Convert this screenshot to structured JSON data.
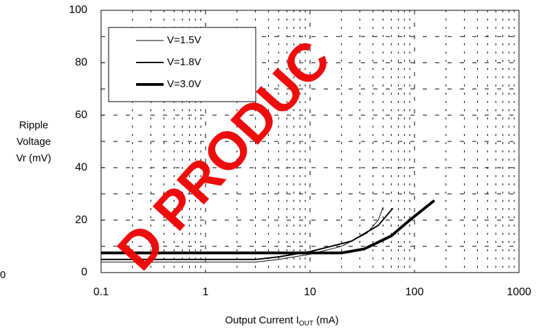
{
  "chart_data": {
    "type": "line",
    "ylabel": [
      "Ripple",
      "Voltage",
      "Vr (mV)"
    ],
    "xlabel": {
      "text": "Output Current I",
      "sub": "OUT",
      "suffix": " (mA)"
    },
    "xscale": "log",
    "xlim": [
      0.1,
      1000
    ],
    "xticks": [
      0.1,
      1,
      10,
      100,
      1000
    ],
    "ylim": [
      0,
      100
    ],
    "yticks": [
      0,
      20,
      40,
      60,
      80,
      100
    ],
    "ygrid": [
      10,
      20,
      30,
      40,
      50,
      60,
      70,
      80,
      90
    ],
    "grid": true,
    "legend": "upper left",
    "series": [
      {
        "name": "V=1.5V",
        "color": "#000000",
        "width": 1,
        "x": [
          0.1,
          1,
          3,
          5,
          10,
          20,
          35,
          45,
          50
        ],
        "values": [
          4,
          4,
          4,
          5,
          7,
          10,
          15,
          20,
          25
        ]
      },
      {
        "name": "V=1.8V",
        "color": "#000000",
        "width": 2,
        "x": [
          0.1,
          1,
          3,
          5,
          10,
          25,
          45,
          62
        ],
        "values": [
          5,
          5,
          5,
          6,
          8,
          12,
          18,
          24.5
        ]
      },
      {
        "name": "V=3.0V",
        "color": "#000000",
        "width": 4,
        "x": [
          0.1,
          1,
          10,
          20,
          33,
          60,
          90,
          155
        ],
        "values": [
          7.5,
          7.5,
          7.5,
          7.5,
          9,
          14,
          20,
          27.5
        ]
      }
    ],
    "stray_label": "0",
    "watermark": "D PRODUC"
  }
}
